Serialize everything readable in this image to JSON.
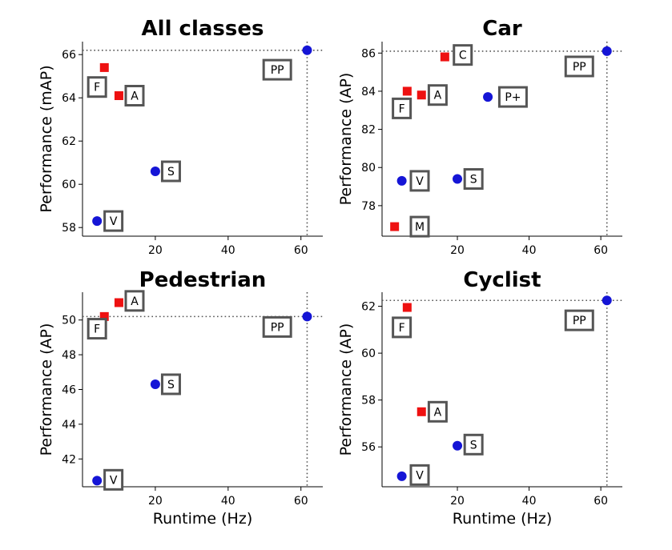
{
  "colors": {
    "marker_blue": "#1515d6",
    "marker_red": "#ee1111",
    "label_box_border": "#555555",
    "ref_line": "#555555"
  },
  "chart_data": [
    {
      "type": "scatter",
      "title": "All classes",
      "ylabel": "Performance (mAP)",
      "xlabel": "",
      "xlim": [
        0,
        66
      ],
      "ylim": [
        57.6,
        66.6
      ],
      "xticks": [
        20,
        40,
        60
      ],
      "yticks": [
        58,
        60,
        62,
        64,
        66
      ],
      "ref_lines": {
        "x": 61.7,
        "y": 66.2
      },
      "points": [
        {
          "x": 6,
          "y": 65.4,
          "marker": "square",
          "color": "red"
        },
        {
          "x": 10,
          "y": 64.1,
          "marker": "square",
          "color": "red"
        },
        {
          "x": 20,
          "y": 60.6,
          "marker": "circle",
          "color": "blue"
        },
        {
          "x": 4,
          "y": 58.3,
          "marker": "circle",
          "color": "blue"
        },
        {
          "x": 61.7,
          "y": 66.2,
          "marker": "circle",
          "color": "blue"
        }
      ],
      "annotations": [
        {
          "text": "F",
          "x": 4,
          "y": 64.5
        },
        {
          "text": "A",
          "x": 14.3,
          "y": 64.1
        },
        {
          "text": "S",
          "x": 24.3,
          "y": 60.6
        },
        {
          "text": "V",
          "x": 8.5,
          "y": 58.3
        },
        {
          "text": "PP",
          "x": 53.5,
          "y": 65.3
        }
      ]
    },
    {
      "type": "scatter",
      "title": "Car",
      "ylabel": "Performance (AP)",
      "xlabel": "",
      "xlim": [
        -1,
        66
      ],
      "ylim": [
        76.4,
        86.6
      ],
      "xticks": [
        20,
        40,
        60
      ],
      "yticks": [
        78,
        80,
        82,
        84,
        86
      ],
      "ref_lines": {
        "x": 61.7,
        "y": 86.1
      },
      "points": [
        {
          "x": 16.5,
          "y": 85.8,
          "marker": "square",
          "color": "red"
        },
        {
          "x": 6,
          "y": 84.0,
          "marker": "square",
          "color": "red"
        },
        {
          "x": 10,
          "y": 83.8,
          "marker": "square",
          "color": "red"
        },
        {
          "x": 2.5,
          "y": 76.9,
          "marker": "square",
          "color": "red"
        },
        {
          "x": 28.5,
          "y": 83.7,
          "marker": "circle",
          "color": "blue"
        },
        {
          "x": 20,
          "y": 79.4,
          "marker": "circle",
          "color": "blue"
        },
        {
          "x": 4.5,
          "y": 79.3,
          "marker": "circle",
          "color": "blue"
        },
        {
          "x": 61.7,
          "y": 86.1,
          "marker": "circle",
          "color": "blue"
        }
      ],
      "annotations": [
        {
          "text": "C",
          "x": 21.5,
          "y": 85.9
        },
        {
          "text": "A",
          "x": 14.5,
          "y": 83.8
        },
        {
          "text": "F",
          "x": 4.5,
          "y": 83.1
        },
        {
          "text": "P+",
          "x": 35.5,
          "y": 83.7
        },
        {
          "text": "S",
          "x": 24.5,
          "y": 79.4
        },
        {
          "text": "V",
          "x": 9.5,
          "y": 79.3
        },
        {
          "text": "M",
          "x": 9.5,
          "y": 76.9
        },
        {
          "text": "PP",
          "x": 54,
          "y": 85.3
        }
      ]
    },
    {
      "type": "scatter",
      "title": "Pedestrian",
      "ylabel": "Performance (AP)",
      "xlabel": "Runtime (Hz)",
      "xlim": [
        0,
        66
      ],
      "ylim": [
        40.4,
        51.6
      ],
      "xticks": [
        20,
        40,
        60
      ],
      "yticks": [
        42,
        44,
        46,
        48,
        50
      ],
      "ref_lines": {
        "x": 61.7,
        "y": 50.2
      },
      "points": [
        {
          "x": 10,
          "y": 51.0,
          "marker": "square",
          "color": "red"
        },
        {
          "x": 6,
          "y": 50.2,
          "marker": "square",
          "color": "red"
        },
        {
          "x": 20,
          "y": 46.3,
          "marker": "circle",
          "color": "blue"
        },
        {
          "x": 4,
          "y": 40.75,
          "marker": "circle",
          "color": "blue"
        },
        {
          "x": 61.7,
          "y": 50.2,
          "marker": "circle",
          "color": "blue"
        }
      ],
      "annotations": [
        {
          "text": "A",
          "x": 14.3,
          "y": 51.1
        },
        {
          "text": "F",
          "x": 4,
          "y": 49.5
        },
        {
          "text": "S",
          "x": 24.3,
          "y": 46.3
        },
        {
          "text": "V",
          "x": 8.5,
          "y": 40.8
        },
        {
          "text": "PP",
          "x": 53.5,
          "y": 49.6
        }
      ]
    },
    {
      "type": "scatter",
      "title": "Cyclist",
      "ylabel": "Performance (AP)",
      "xlabel": "Runtime (Hz)",
      "xlim": [
        -1,
        66
      ],
      "ylim": [
        54.3,
        62.6
      ],
      "xticks": [
        20,
        40,
        60
      ],
      "yticks": [
        56,
        58,
        60,
        62
      ],
      "ref_lines": {
        "x": 61.7,
        "y": 62.25
      },
      "points": [
        {
          "x": 6,
          "y": 61.95,
          "marker": "square",
          "color": "red"
        },
        {
          "x": 10,
          "y": 57.5,
          "marker": "square",
          "color": "red"
        },
        {
          "x": 20,
          "y": 56.05,
          "marker": "circle",
          "color": "blue"
        },
        {
          "x": 4.5,
          "y": 54.75,
          "marker": "circle",
          "color": "blue"
        },
        {
          "x": 61.7,
          "y": 62.25,
          "marker": "circle",
          "color": "blue"
        }
      ],
      "annotations": [
        {
          "text": "F",
          "x": 4.5,
          "y": 61.1
        },
        {
          "text": "A",
          "x": 14.5,
          "y": 57.5
        },
        {
          "text": "S",
          "x": 24.5,
          "y": 56.1
        },
        {
          "text": "V",
          "x": 9.5,
          "y": 54.8
        },
        {
          "text": "PP",
          "x": 54,
          "y": 61.4
        }
      ]
    }
  ]
}
